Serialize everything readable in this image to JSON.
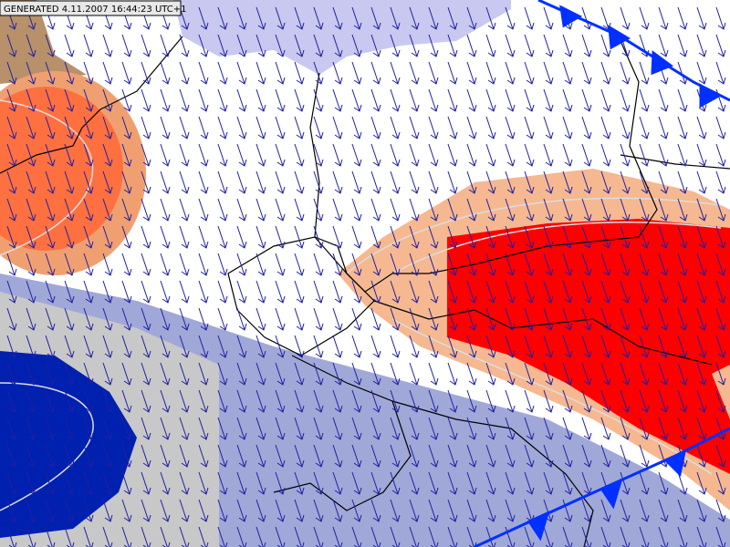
{
  "header": {
    "label": "GENERATED 4.11.2007 16:44:23 UTC+1"
  }
}
